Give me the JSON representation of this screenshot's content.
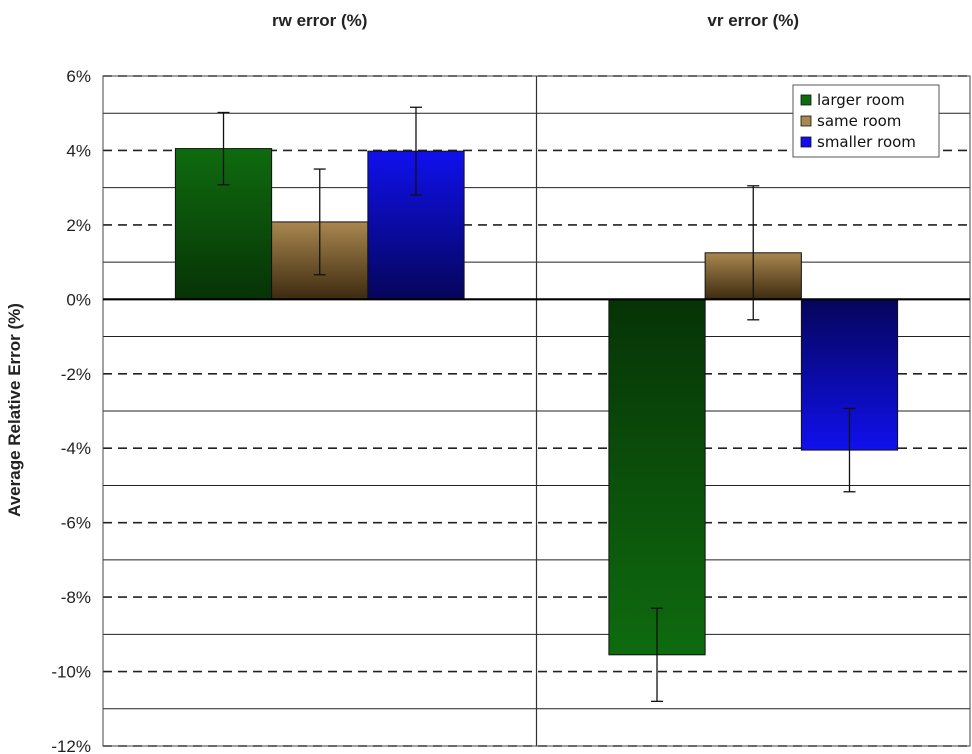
{
  "chart_data": {
    "type": "bar",
    "categories": [
      "rw error (%)",
      "vr error (%)"
    ],
    "series": [
      {
        "name": "larger room",
        "values": [
          4.05,
          -9.55
        ],
        "errors": [
          0.97,
          1.25
        ],
        "color": "#0f6b0f",
        "color_dark": "#063306"
      },
      {
        "name": "same room",
        "values": [
          2.08,
          1.25
        ],
        "errors": [
          1.42,
          1.8
        ],
        "color": "#a9874f",
        "color_dark": "#3d2a10"
      },
      {
        "name": "smaller room",
        "values": [
          3.98,
          -4.05
        ],
        "errors": [
          1.18,
          1.12
        ],
        "color": "#1010ee",
        "color_dark": "#05055a"
      }
    ],
    "ylabel": "Average Relative Error (%)",
    "xlabel": "",
    "ylim": [
      -12,
      6
    ],
    "y_ticks": [
      6,
      4,
      2,
      0,
      -2,
      -4,
      -6,
      -8,
      -10,
      -12
    ],
    "y_tick_labels": [
      "6%",
      "4%",
      "2%",
      "0%",
      "-2%",
      "-4%",
      "-6%",
      "-8%",
      "-10%",
      "-12%"
    ],
    "major_grid_style": "dashed",
    "minor_grid_style": "solid",
    "legend_position": "top-right"
  }
}
